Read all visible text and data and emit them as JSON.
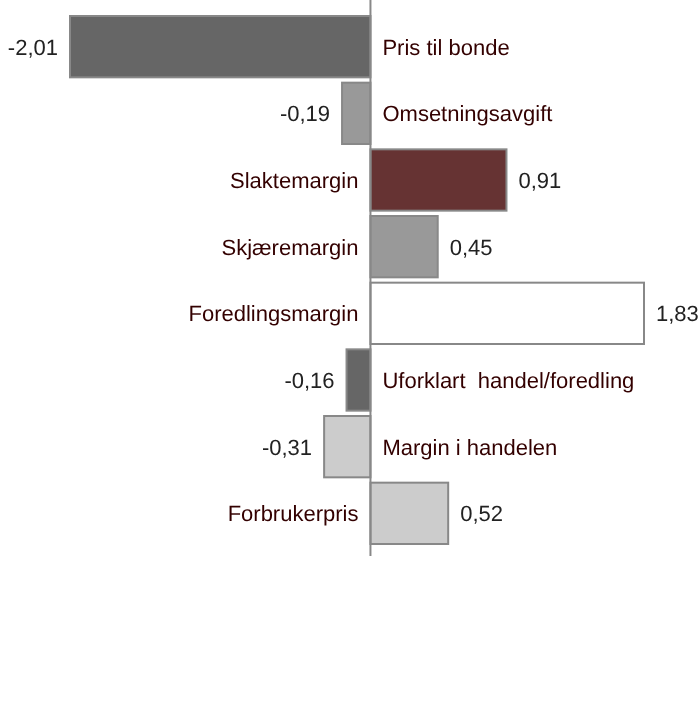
{
  "chart_data": {
    "type": "bar",
    "orientation": "horizontal",
    "categories": [
      "Pris til bonde",
      "Omsetningsavgift",
      "Slaktemargin",
      "Skjæremargin",
      "Foredlingsmargin",
      "Uforklart  handel/foredling",
      "Margin i handelen",
      "Forbrukerpris"
    ],
    "values": [
      -2.01,
      -0.19,
      0.91,
      0.45,
      1.83,
      -0.16,
      -0.31,
      0.52
    ],
    "value_labels": [
      "-2,01",
      "-0,19",
      "0,91",
      "0,45",
      "1,83",
      "-0,16",
      "-0,31",
      "0,52"
    ],
    "colors": [
      "#666666",
      "#999999",
      "#663333",
      "#999999",
      "#ffffff",
      "#666666",
      "#cccccc",
      "#cccccc"
    ]
  }
}
